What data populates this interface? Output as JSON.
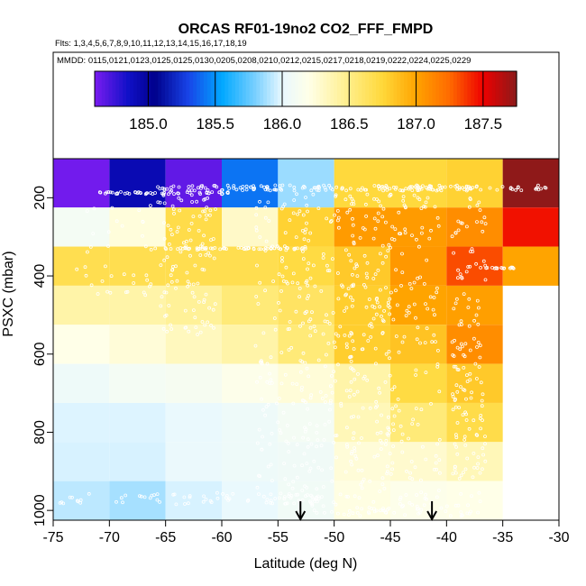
{
  "chart_data": {
    "type": "heatmap",
    "title": "ORCAS RF01-19no2 CO2_FFF_FMPD",
    "flights_note": "Flts: 1,3,4,5,6,7,8,9,10,11,12,13,14,15,16,17,18,19",
    "dates_note": "MMDD: 0115,0121,0123,0125,0125,0130,0205,0208,0210,0212,0215,0217,0218,0219,0222,0224,0225,0229",
    "xlabel": "Latitude (deg N)",
    "ylabel": "PSXC (mbar)",
    "xlim": [
      -75,
      -30
    ],
    "ylim": [
      1025,
      100
    ],
    "xticks": [
      -75,
      -70,
      -65,
      -60,
      -55,
      -50,
      -45,
      -40,
      -35,
      -30
    ],
    "yticks": [
      200,
      400,
      600,
      800,
      1000
    ],
    "colorbar": {
      "range": [
        184.6,
        187.75
      ],
      "ticks": [
        185.0,
        185.5,
        186.0,
        186.5,
        187.0,
        187.5
      ],
      "tick_labels": [
        "185.0",
        "185.5",
        "186.0",
        "186.5",
        "187.0",
        "187.5"
      ],
      "stops": [
        {
          "v": 184.6,
          "c": "#7a1cf0"
        },
        {
          "v": 184.85,
          "c": "#1010c8"
        },
        {
          "v": 185.05,
          "c": "#00008c"
        },
        {
          "v": 185.3,
          "c": "#1844e8"
        },
        {
          "v": 185.55,
          "c": "#00a8ff"
        },
        {
          "v": 185.8,
          "c": "#7ad0ff"
        },
        {
          "v": 186.0,
          "c": "#e8f8ff"
        },
        {
          "v": 186.2,
          "c": "#ffffe8"
        },
        {
          "v": 186.5,
          "c": "#ffee88"
        },
        {
          "v": 186.75,
          "c": "#ffd83a"
        },
        {
          "v": 187.0,
          "c": "#ffa400"
        },
        {
          "v": 187.25,
          "c": "#ff6a00"
        },
        {
          "v": 187.5,
          "c": "#ee0000"
        },
        {
          "v": 187.75,
          "c": "#8b1a1a"
        }
      ]
    },
    "lat_bins": [
      -75,
      -70,
      -65,
      -60,
      -55,
      -50,
      -45,
      -40,
      -35
    ],
    "p_bins": [
      [
        100,
        225
      ],
      [
        225,
        325
      ],
      [
        325,
        425
      ],
      [
        425,
        525
      ],
      [
        525,
        625
      ],
      [
        625,
        725
      ],
      [
        725,
        825
      ],
      [
        825,
        925
      ],
      [
        925,
        1025
      ]
    ],
    "bin_values": [
      [
        184.62,
        184.92,
        184.66,
        185.42,
        185.86,
        186.74,
        186.74,
        186.78,
        187.74
      ],
      [
        186.1,
        186.24,
        186.7,
        186.3,
        186.78,
        187.04,
        187.04,
        187.1,
        187.46
      ],
      [
        186.68,
        186.68,
        186.68,
        186.68,
        186.72,
        186.82,
        187.05,
        187.32,
        187.0
      ],
      [
        186.4,
        186.4,
        186.45,
        186.55,
        186.62,
        186.8,
        187.0,
        187.02,
        null
      ],
      [
        186.2,
        186.25,
        186.33,
        186.4,
        186.55,
        186.8,
        186.85,
        187.1,
        null
      ],
      [
        186.05,
        186.1,
        186.12,
        186.18,
        186.25,
        186.4,
        186.72,
        186.82,
        null
      ],
      [
        185.98,
        185.98,
        186.02,
        186.05,
        186.1,
        186.35,
        186.55,
        186.7,
        null
      ],
      [
        185.97,
        185.97,
        186.03,
        186.05,
        186.07,
        186.25,
        186.28,
        186.35,
        null
      ],
      [
        185.92,
        185.88,
        185.97,
        186.02,
        186.08,
        186.22,
        186.18,
        186.2,
        null
      ]
    ],
    "arrow_latitudes": [
      -53.0,
      -41.3
    ]
  }
}
